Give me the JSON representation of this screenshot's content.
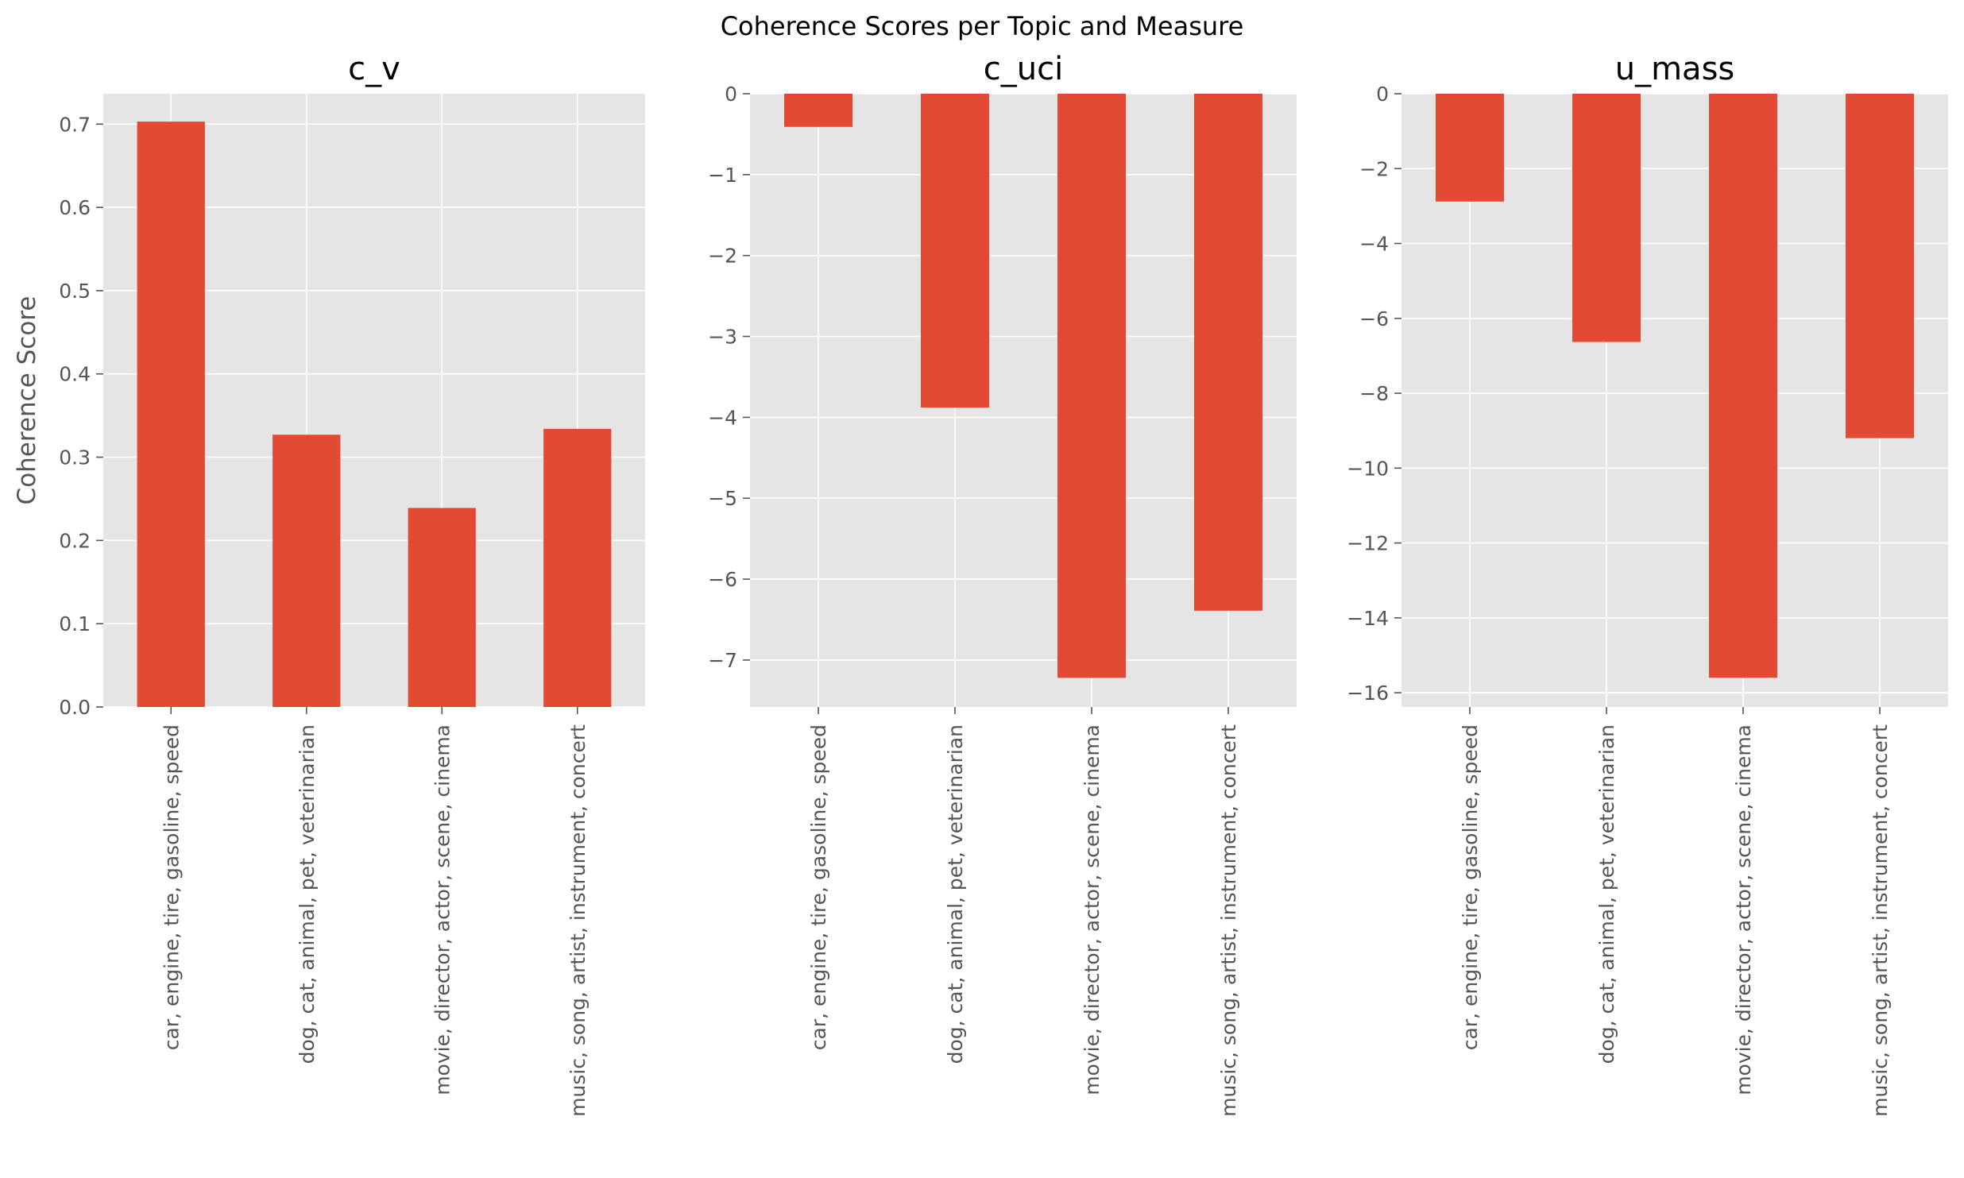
{
  "figure": {
    "suptitle": "Coherence Scores per Topic and Measure"
  },
  "colors": {
    "bar": "#e24a33",
    "panel_background": "#e5e5e5",
    "grid": "#ffffff",
    "tick_text": "#555555"
  },
  "chart_data": [
    {
      "type": "bar",
      "title": "c_v",
      "xlabel": "",
      "ylabel": "Coherence Score",
      "categories": [
        "car, engine, tire, gasoline, speed",
        "dog, cat, animal, pet, veterinarian",
        "movie, director, actor, scene, cinema",
        "music, song, artist, instrument, concert"
      ],
      "values": [
        0.703,
        0.327,
        0.239,
        0.334
      ],
      "ylim": [
        0,
        0.7365
      ],
      "yticks": [
        0.0,
        0.1,
        0.2,
        0.3,
        0.4,
        0.5,
        0.6,
        0.7
      ],
      "ytick_labels": [
        "0.0",
        "0.1",
        "0.2",
        "0.3",
        "0.4",
        "0.5",
        "0.6",
        "0.7"
      ],
      "grid": true
    },
    {
      "type": "bar",
      "title": "c_uci",
      "xlabel": "",
      "ylabel": "",
      "categories": [
        "car, engine, tire, gasoline, speed",
        "dog, cat, animal, pet, veterinarian",
        "movie, director, actor, scene, cinema",
        "music, song, artist, instrument, concert"
      ],
      "values": [
        -0.41,
        -3.88,
        -7.22,
        -6.39
      ],
      "ylim": [
        -7.58,
        0
      ],
      "yticks": [
        0,
        -1,
        -2,
        -3,
        -4,
        -5,
        -6,
        -7
      ],
      "ytick_labels": [
        "0",
        "−1",
        "−2",
        "−3",
        "−4",
        "−5",
        "−6",
        "−7"
      ],
      "grid": true
    },
    {
      "type": "bar",
      "title": "u_mass",
      "xlabel": "",
      "ylabel": "",
      "categories": [
        "car, engine, tire, gasoline, speed",
        "dog, cat, animal, pet, veterinarian",
        "movie, director, actor, scene, cinema",
        "music, song, artist, instrument, concert"
      ],
      "values": [
        -2.88,
        -6.63,
        -15.6,
        -9.2
      ],
      "ylim": [
        -16.38,
        0
      ],
      "yticks": [
        0,
        -2,
        -4,
        -6,
        -8,
        -10,
        -12,
        -14,
        -16
      ],
      "ytick_labels": [
        "0",
        "−2",
        "−4",
        "−6",
        "−8",
        "−10",
        "−12",
        "−14",
        "−16"
      ],
      "grid": true
    }
  ]
}
